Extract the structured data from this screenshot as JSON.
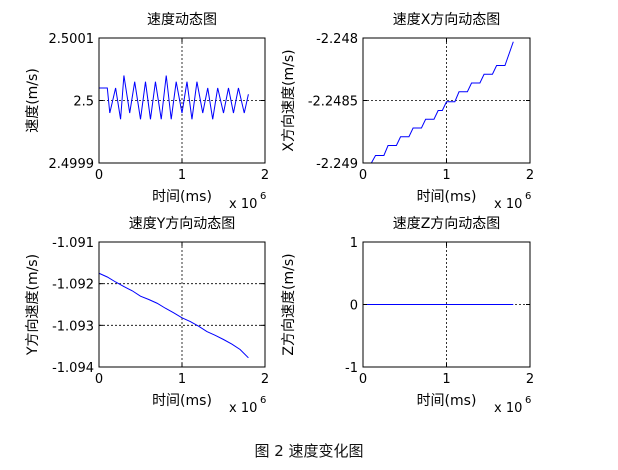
{
  "figure_caption": "图 2 速度变化图",
  "colors": {
    "series": "#0000ff",
    "axis": "#000000",
    "grid": "#000000"
  },
  "chart_data": [
    {
      "type": "line",
      "title": "速度动态图",
      "xlabel": "时间(ms)",
      "ylabel": "速度(m/s)",
      "x_exponent_label": "x 10",
      "x_exponent_power": "6",
      "xlim": [
        0,
        2
      ],
      "ylim": [
        2.4999,
        2.5001
      ],
      "xticks": [
        0,
        1,
        2
      ],
      "xtick_labels": [
        "0",
        "1",
        "2"
      ],
      "yticks": [
        2.4999,
        2.5,
        2.5001
      ],
      "ytick_labels": [
        "2.4999",
        "2.5",
        "2.5001"
      ],
      "grid": true,
      "series": [
        {
          "x": [
            0,
            0.05,
            0.1,
            0.13,
            0.2,
            0.26,
            0.3,
            0.37,
            0.43,
            0.5,
            0.56,
            0.62,
            0.68,
            0.75,
            0.81,
            0.87,
            0.93,
            1.0,
            1.06,
            1.12,
            1.18,
            1.25,
            1.31,
            1.37,
            1.43,
            1.5,
            1.56,
            1.62,
            1.68,
            1.75,
            1.8
          ],
          "y": [
            2.50002,
            2.50002,
            2.50002,
            2.49998,
            2.50002,
            2.49997,
            2.50004,
            2.49998,
            2.50003,
            2.49997,
            2.50003,
            2.49997,
            2.50003,
            2.49997,
            2.50004,
            2.49997,
            2.50003,
            2.49998,
            2.50003,
            2.49997,
            2.50003,
            2.49998,
            2.50002,
            2.49997,
            2.50002,
            2.49998,
            2.50002,
            2.49998,
            2.50002,
            2.49998,
            2.50001
          ]
        }
      ]
    },
    {
      "type": "line",
      "title": "速度X方向动态图",
      "xlabel": "时间(ms)",
      "ylabel": "X方向速度(m/s)",
      "x_exponent_label": "x 10",
      "x_exponent_power": "6",
      "xlim": [
        0,
        2
      ],
      "ylim": [
        -2.249,
        -2.248
      ],
      "xticks": [
        0,
        1,
        2
      ],
      "xtick_labels": [
        "0",
        "1",
        "2"
      ],
      "yticks": [
        -2.249,
        -2.2485,
        -2.248
      ],
      "ytick_labels": [
        "-2.249",
        "-2.2485",
        "-2.248"
      ],
      "grid": true,
      "series": [
        {
          "x": [
            0,
            0.1,
            0.15,
            0.25,
            0.3,
            0.4,
            0.45,
            0.55,
            0.6,
            0.7,
            0.75,
            0.85,
            0.9,
            0.95,
            1.0,
            1.1,
            1.15,
            1.25,
            1.3,
            1.4,
            1.45,
            1.55,
            1.6,
            1.7,
            1.8
          ],
          "y": [
            -2.249,
            -2.249,
            -2.24894,
            -2.24894,
            -2.24886,
            -2.24886,
            -2.24879,
            -2.24879,
            -2.24872,
            -2.24872,
            -2.24865,
            -2.24865,
            -2.24858,
            -2.24858,
            -2.24851,
            -2.24851,
            -2.24843,
            -2.24843,
            -2.24836,
            -2.24836,
            -2.24829,
            -2.24829,
            -2.24822,
            -2.24822,
            -2.24803
          ]
        }
      ]
    },
    {
      "type": "line",
      "title": "速度Y方向动态图",
      "xlabel": "时间(ms)",
      "ylabel": "Y方向速度(m/s)",
      "x_exponent_label": "x 10",
      "x_exponent_power": "6",
      "xlim": [
        0,
        2
      ],
      "ylim": [
        -1.094,
        -1.091
      ],
      "xticks": [
        0,
        1,
        2
      ],
      "xtick_labels": [
        "0",
        "1",
        "2"
      ],
      "yticks": [
        -1.094,
        -1.093,
        -1.092,
        -1.091
      ],
      "ytick_labels": [
        "-1.094",
        "-1.093",
        "-1.092",
        "-1.091"
      ],
      "grid": true,
      "series": [
        {
          "x": [
            0,
            0.1,
            0.2,
            0.3,
            0.4,
            0.5,
            0.6,
            0.7,
            0.8,
            0.9,
            1.0,
            1.1,
            1.2,
            1.3,
            1.4,
            1.5,
            1.6,
            1.7,
            1.8
          ],
          "y": [
            -1.09175,
            -1.09184,
            -1.09196,
            -1.09207,
            -1.09217,
            -1.0923,
            -1.09238,
            -1.09247,
            -1.09259,
            -1.0927,
            -1.09282,
            -1.09291,
            -1.09302,
            -1.09315,
            -1.09324,
            -1.09334,
            -1.09345,
            -1.09358,
            -1.09378
          ]
        }
      ]
    },
    {
      "type": "line",
      "title": "速度Z方向动态图",
      "xlabel": "时间(ms)",
      "ylabel": "Z方向速度(m/s)",
      "x_exponent_label": "x 10",
      "x_exponent_power": "6",
      "xlim": [
        0,
        2
      ],
      "ylim": [
        -1,
        1
      ],
      "xticks": [
        0,
        1,
        2
      ],
      "xtick_labels": [
        "0",
        "1",
        "2"
      ],
      "yticks": [
        -1,
        0,
        1
      ],
      "ytick_labels": [
        "-1",
        "0",
        "1"
      ],
      "grid": true,
      "series": [
        {
          "x": [
            0,
            1.8
          ],
          "y": [
            0,
            0
          ]
        }
      ]
    }
  ]
}
